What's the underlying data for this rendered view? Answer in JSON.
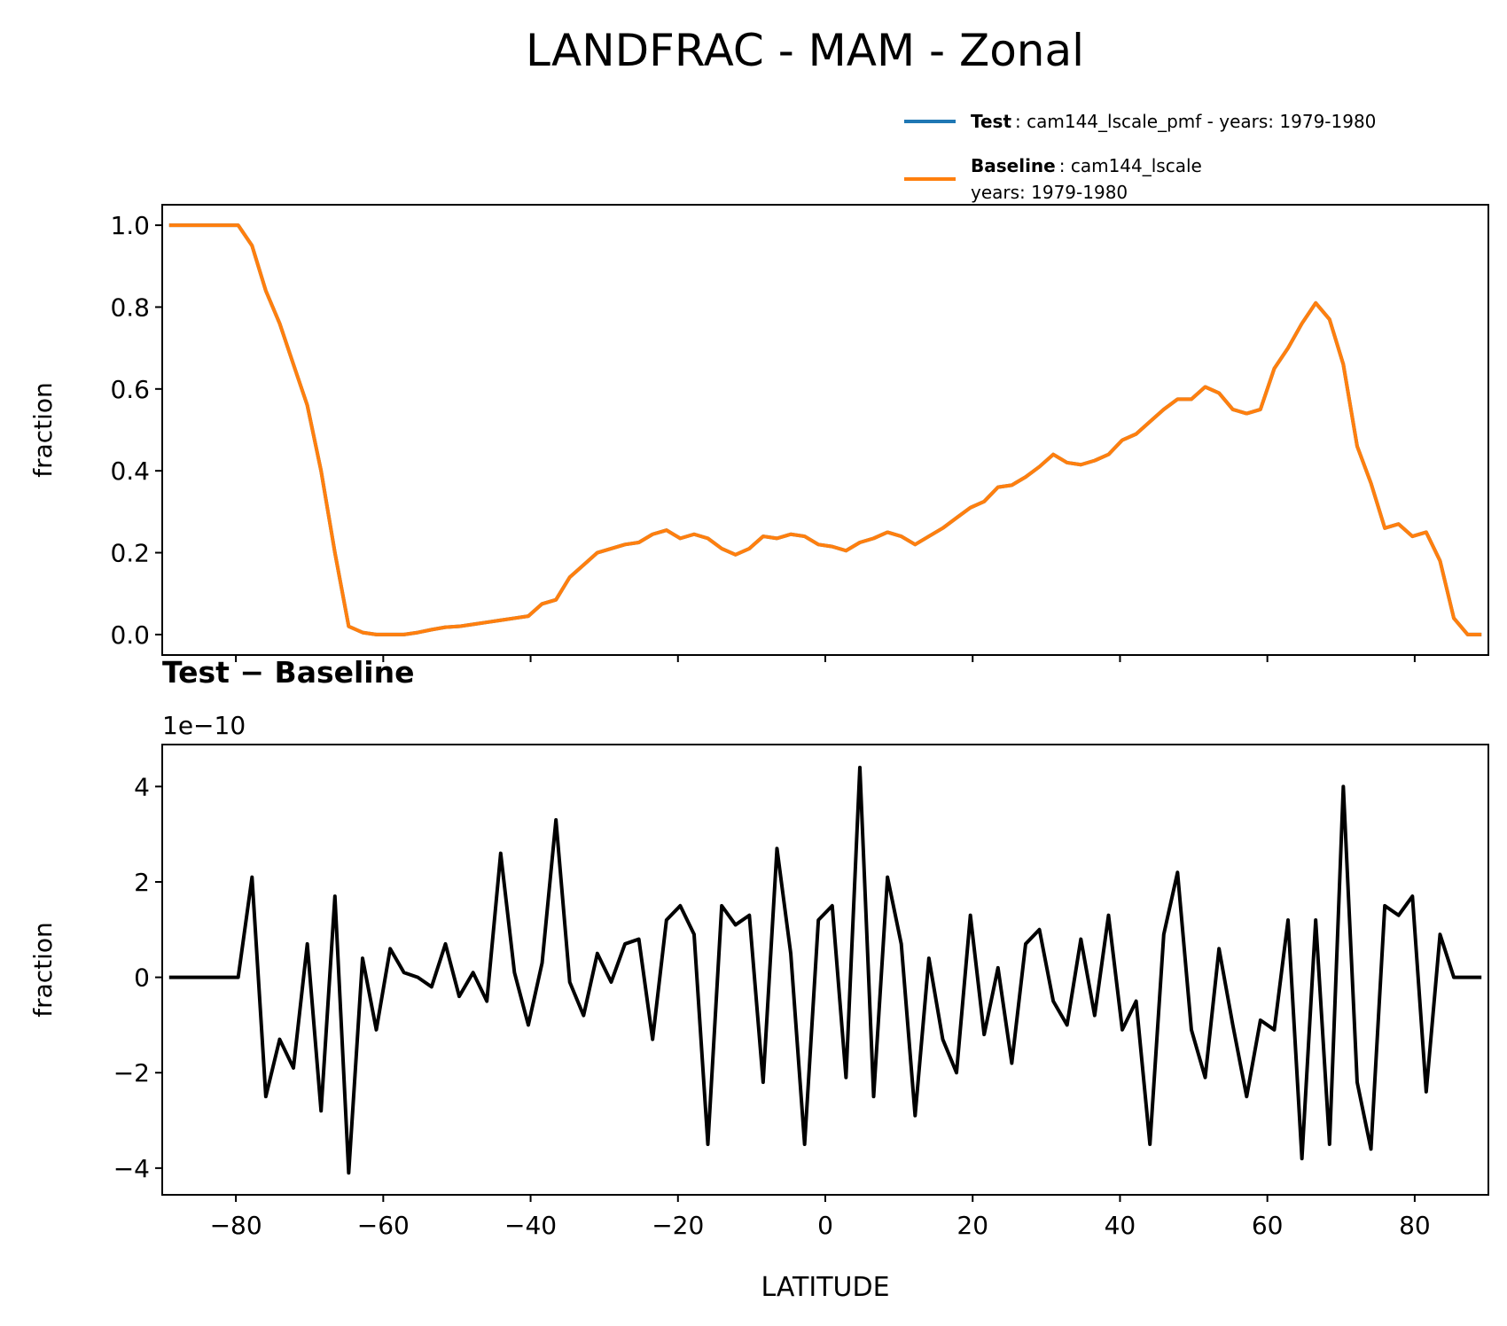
{
  "chart_data": [
    {
      "type": "line",
      "title": "LANDFRAC - MAM - Zonal",
      "ylabel": "fraction",
      "x": [
        -89.06,
        -87.19,
        -85.31,
        -83.44,
        -81.56,
        -79.69,
        -77.81,
        -75.94,
        -74.06,
        -72.19,
        -70.31,
        -68.44,
        -66.56,
        -64.69,
        -62.81,
        -60.94,
        -59.06,
        -57.19,
        -55.31,
        -53.44,
        -51.56,
        -49.69,
        -47.81,
        -45.94,
        -44.06,
        -42.19,
        -40.31,
        -38.44,
        -36.56,
        -34.69,
        -32.81,
        -30.94,
        -29.06,
        -27.19,
        -25.31,
        -23.44,
        -21.56,
        -19.69,
        -17.81,
        -15.94,
        -14.06,
        -12.19,
        -10.31,
        -8.44,
        -6.56,
        -4.69,
        -2.81,
        -0.94,
        0.94,
        2.81,
        4.69,
        6.56,
        8.44,
        10.31,
        12.19,
        14.06,
        15.94,
        17.81,
        19.69,
        21.56,
        23.44,
        25.31,
        27.19,
        29.06,
        30.94,
        32.81,
        34.69,
        36.56,
        38.44,
        40.31,
        42.19,
        44.06,
        45.94,
        47.81,
        49.69,
        51.56,
        53.44,
        55.31,
        57.19,
        59.06,
        60.94,
        62.81,
        64.69,
        66.56,
        68.44,
        70.31,
        72.19,
        74.06,
        75.94,
        77.81,
        79.69,
        81.56,
        83.44,
        85.31,
        87.19,
        89.06
      ],
      "series": [
        {
          "name": "Test",
          "description": [
            ": cam144_lscale_pmf - years: 1979-1980"
          ],
          "color": "#1f77b4",
          "values": [
            1,
            1,
            1,
            1,
            1,
            1,
            0.95,
            0.84,
            0.76,
            0.66,
            0.56,
            0.4,
            0.2,
            0.02,
            0.005,
            0,
            0,
            0,
            0.005,
            0.012,
            0.018,
            0.02,
            0.025,
            0.03,
            0.035,
            0.04,
            0.045,
            0.075,
            0.085,
            0.14,
            0.17,
            0.2,
            0.21,
            0.22,
            0.225,
            0.245,
            0.255,
            0.235,
            0.245,
            0.235,
            0.21,
            0.195,
            0.21,
            0.24,
            0.235,
            0.245,
            0.24,
            0.22,
            0.215,
            0.205,
            0.225,
            0.235,
            0.25,
            0.24,
            0.22,
            0.24,
            0.26,
            0.285,
            0.31,
            0.325,
            0.36,
            0.365,
            0.385,
            0.41,
            0.44,
            0.42,
            0.415,
            0.425,
            0.44,
            0.475,
            0.49,
            0.52,
            0.55,
            0.575,
            0.575,
            0.605,
            0.59,
            0.55,
            0.54,
            0.55,
            0.65,
            0.7,
            0.76,
            0.81,
            0.77,
            0.66,
            0.46,
            0.37,
            0.26,
            0.27,
            0.24,
            0.25,
            0.18,
            0.04,
            0,
            0
          ]
        },
        {
          "name": "Baseline",
          "description": [
            ": cam144_lscale",
            "years: 1979-1980"
          ],
          "color": "#ff7f0e",
          "values": [
            1,
            1,
            1,
            1,
            1,
            1,
            0.95,
            0.84,
            0.76,
            0.66,
            0.56,
            0.4,
            0.2,
            0.02,
            0.005,
            0,
            0,
            0,
            0.005,
            0.012,
            0.018,
            0.02,
            0.025,
            0.03,
            0.035,
            0.04,
            0.045,
            0.075,
            0.085,
            0.14,
            0.17,
            0.2,
            0.21,
            0.22,
            0.225,
            0.245,
            0.255,
            0.235,
            0.245,
            0.235,
            0.21,
            0.195,
            0.21,
            0.24,
            0.235,
            0.245,
            0.24,
            0.22,
            0.215,
            0.205,
            0.225,
            0.235,
            0.25,
            0.24,
            0.22,
            0.24,
            0.26,
            0.285,
            0.31,
            0.325,
            0.36,
            0.365,
            0.385,
            0.41,
            0.44,
            0.42,
            0.415,
            0.425,
            0.44,
            0.475,
            0.49,
            0.52,
            0.55,
            0.575,
            0.575,
            0.605,
            0.59,
            0.55,
            0.54,
            0.55,
            0.65,
            0.7,
            0.76,
            0.81,
            0.77,
            0.66,
            0.46,
            0.37,
            0.26,
            0.27,
            0.24,
            0.25,
            0.18,
            0.04,
            0,
            0
          ]
        }
      ],
      "xlim": [
        -90,
        90
      ],
      "xticks": [
        -80,
        -60,
        -40,
        -20,
        0,
        20,
        40,
        60,
        80
      ],
      "ylim": [
        -0.05,
        1.05
      ],
      "yticks": [
        {
          "value": 0,
          "label": "0.0"
        },
        {
          "value": 0.2,
          "label": "0.2"
        },
        {
          "value": 0.4,
          "label": "0.4"
        },
        {
          "value": 0.6,
          "label": "0.6"
        },
        {
          "value": 0.8,
          "label": "0.8"
        },
        {
          "value": 1,
          "label": "1.0"
        }
      ],
      "legend": "upper right"
    },
    {
      "type": "line",
      "title": "Test − Baseline",
      "ylabel": "fraction",
      "xlabel": "LATITUDE",
      "offset_text": "1e−10",
      "x": [
        -89.06,
        -87.19,
        -85.31,
        -83.44,
        -81.56,
        -79.69,
        -77.81,
        -75.94,
        -74.06,
        -72.19,
        -70.31,
        -68.44,
        -66.56,
        -64.69,
        -62.81,
        -60.94,
        -59.06,
        -57.19,
        -55.31,
        -53.44,
        -51.56,
        -49.69,
        -47.81,
        -45.94,
        -44.06,
        -42.19,
        -40.31,
        -38.44,
        -36.56,
        -34.69,
        -32.81,
        -30.94,
        -29.06,
        -27.19,
        -25.31,
        -23.44,
        -21.56,
        -19.69,
        -17.81,
        -15.94,
        -14.06,
        -12.19,
        -10.31,
        -8.44,
        -6.56,
        -4.69,
        -2.81,
        -0.94,
        0.94,
        2.81,
        4.69,
        6.56,
        8.44,
        10.31,
        12.19,
        14.06,
        15.94,
        17.81,
        19.69,
        21.56,
        23.44,
        25.31,
        27.19,
        29.06,
        30.94,
        32.81,
        34.69,
        36.56,
        38.44,
        40.31,
        42.19,
        44.06,
        45.94,
        47.81,
        49.69,
        51.56,
        53.44,
        55.31,
        57.19,
        59.06,
        60.94,
        62.81,
        64.69,
        66.56,
        68.44,
        70.31,
        72.19,
        74.06,
        75.94,
        77.81,
        79.69,
        81.56,
        83.44,
        85.31,
        87.19,
        89.06
      ],
      "series": [
        {
          "color": "#000000",
          "values": [
            0,
            0,
            0,
            0,
            0,
            0,
            2.1,
            -2.5,
            -1.3,
            -1.9,
            0.7,
            -2.8,
            1.7,
            -4.1,
            0.4,
            -1.1,
            0.6,
            0.1,
            0,
            -0.2,
            0.7,
            -0.4,
            0.1,
            -0.5,
            2.6,
            0.1,
            -1.0,
            0.3,
            3.3,
            -0.1,
            -0.8,
            0.5,
            -0.1,
            0.7,
            0.8,
            -1.3,
            1.2,
            1.5,
            0.9,
            -3.5,
            1.5,
            1.1,
            1.3,
            -2.2,
            2.7,
            0.5,
            -3.5,
            1.2,
            1.5,
            -2.1,
            4.4,
            -2.5,
            2.1,
            0.7,
            -2.9,
            0.4,
            -1.3,
            -2.0,
            1.3,
            -1.2,
            0.2,
            -1.8,
            0.7,
            1.0,
            -0.5,
            -1.0,
            0.8,
            -0.8,
            1.3,
            -1.1,
            -0.5,
            -3.5,
            0.9,
            2.2,
            -1.1,
            -2.1,
            0.6,
            -1.0,
            -2.5,
            -0.9,
            -1.1,
            1.2,
            -3.8,
            1.2,
            -3.5,
            4.0,
            -2.2,
            -3.6,
            1.5,
            1.3,
            1.7,
            -2.4,
            0.9,
            0,
            0,
            0
          ]
        }
      ],
      "xlim": [
        -90,
        90
      ],
      "xticks": [
        {
          "value": -80,
          "label": "−80"
        },
        {
          "value": -60,
          "label": "−60"
        },
        {
          "value": -40,
          "label": "−40"
        },
        {
          "value": -20,
          "label": "−20"
        },
        0,
        20,
        40,
        60,
        80
      ],
      "ylim": [
        -4.56,
        4.88
      ],
      "yticks": [
        {
          "value": -4,
          "label": "−4"
        },
        {
          "value": -2,
          "label": "−2"
        },
        0,
        2,
        4
      ]
    }
  ]
}
